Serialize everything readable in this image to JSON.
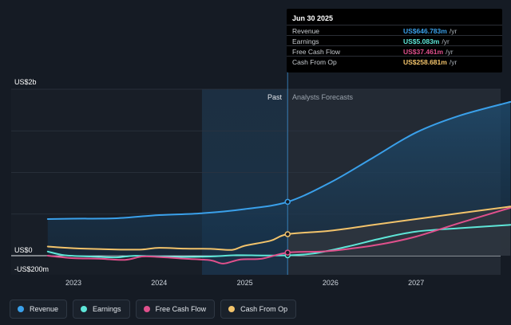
{
  "chart_data": {
    "type": "line",
    "tooltip": {
      "date": "Jun 30 2025",
      "rows": [
        {
          "label": "Revenue",
          "value": "US$646.783m",
          "unit": "/yr",
          "color": "#3aa0ea"
        },
        {
          "label": "Earnings",
          "value": "US$5.083m",
          "unit": "/yr",
          "color": "#5ee6d8"
        },
        {
          "label": "Free Cash Flow",
          "value": "US$37.461m",
          "unit": "/yr",
          "color": "#e0508c"
        },
        {
          "label": "Cash From Op",
          "value": "US$258.681m",
          "unit": "/yr",
          "color": "#f2c36b"
        }
      ]
    },
    "y_labels": {
      "top": "US$2b",
      "zero": "US$0",
      "bottom": "-US$200m"
    },
    "past_label": "Past",
    "forecast_label": "Analysts Forecasts",
    "x_ticks": [
      {
        "label": "2023",
        "x": 2023.0
      },
      {
        "label": "2024",
        "x": 2024.0
      },
      {
        "label": "2025",
        "x": 2025.0
      },
      {
        "label": "2026",
        "x": 2026.0
      },
      {
        "label": "2027",
        "x": 2027.0
      }
    ],
    "x_range": [
      2022.45,
      2028.2
    ],
    "ylim": [
      -200,
      2000
    ],
    "present_x": 2025.5,
    "highlight_start_x": 2024.5,
    "series": [
      {
        "name": "Revenue",
        "color": "#3aa0ea",
        "points": [
          [
            2022.7,
            440
          ],
          [
            2023.0,
            445
          ],
          [
            2023.5,
            450
          ],
          [
            2024.0,
            488
          ],
          [
            2024.5,
            510
          ],
          [
            2025.0,
            560
          ],
          [
            2025.5,
            646.8
          ],
          [
            2026.0,
            880
          ],
          [
            2026.5,
            1180
          ],
          [
            2027.0,
            1480
          ],
          [
            2027.5,
            1680
          ],
          [
            2028.1,
            1848
          ]
        ]
      },
      {
        "name": "Earnings",
        "color": "#5ee6d8",
        "points": [
          [
            2022.7,
            50
          ],
          [
            2022.9,
            5
          ],
          [
            2023.2,
            -10
          ],
          [
            2023.5,
            -20
          ],
          [
            2023.7,
            -2
          ],
          [
            2024.0,
            -10
          ],
          [
            2024.3,
            -15
          ],
          [
            2024.6,
            -10
          ],
          [
            2024.9,
            6
          ],
          [
            2025.2,
            3
          ],
          [
            2025.5,
            5.1
          ],
          [
            2025.8,
            26
          ],
          [
            2026.2,
            110
          ],
          [
            2026.6,
            210
          ],
          [
            2027.0,
            290
          ],
          [
            2027.5,
            330
          ],
          [
            2028.1,
            370
          ]
        ]
      },
      {
        "name": "Free Cash Flow",
        "color": "#e0508c",
        "points": [
          [
            2022.7,
            0
          ],
          [
            2023.0,
            -30
          ],
          [
            2023.3,
            -35
          ],
          [
            2023.6,
            -50
          ],
          [
            2023.8,
            -10
          ],
          [
            2024.0,
            -15
          ],
          [
            2024.3,
            -35
          ],
          [
            2024.6,
            -55
          ],
          [
            2024.75,
            -95
          ],
          [
            2024.95,
            -45
          ],
          [
            2025.2,
            -35
          ],
          [
            2025.5,
            37.5
          ],
          [
            2025.9,
            50
          ],
          [
            2026.2,
            80
          ],
          [
            2026.6,
            140
          ],
          [
            2027.0,
            230
          ],
          [
            2027.5,
            390
          ],
          [
            2028.1,
            575
          ]
        ]
      },
      {
        "name": "Cash From Op",
        "color": "#f2c36b",
        "points": [
          [
            2022.7,
            110
          ],
          [
            2023.0,
            90
          ],
          [
            2023.5,
            75
          ],
          [
            2023.8,
            75
          ],
          [
            2024.0,
            95
          ],
          [
            2024.3,
            85
          ],
          [
            2024.6,
            82
          ],
          [
            2024.85,
            70
          ],
          [
            2025.0,
            120
          ],
          [
            2025.3,
            180
          ],
          [
            2025.5,
            258.7
          ],
          [
            2026.0,
            300
          ],
          [
            2026.5,
            370
          ],
          [
            2027.0,
            440
          ],
          [
            2027.5,
            510
          ],
          [
            2028.1,
            590
          ]
        ]
      }
    ],
    "legend": [
      "Revenue",
      "Earnings",
      "Free Cash Flow",
      "Cash From Op"
    ]
  }
}
